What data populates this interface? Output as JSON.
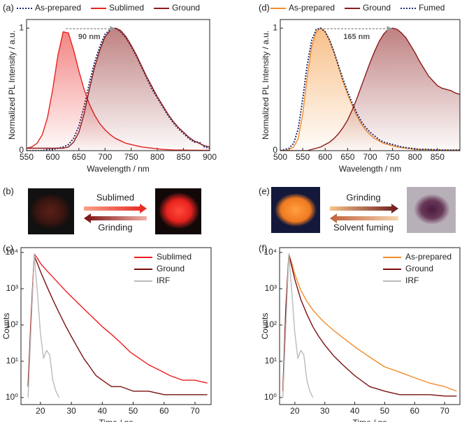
{
  "chart_data": [
    {
      "type": "line",
      "panel_label": "(a)",
      "xlabel": "Wavelength / nm",
      "ylabel": "Normalized PL Intensity / a.u.",
      "xlim": [
        550,
        900
      ],
      "ylim": [
        0,
        1.07
      ],
      "xticks": [
        550,
        600,
        650,
        700,
        750,
        800,
        850,
        900
      ],
      "yticks": [
        0,
        1
      ],
      "legend": "top",
      "annotation": "90 nm",
      "x": [
        550,
        560,
        570,
        580,
        590,
        600,
        610,
        620,
        630,
        640,
        650,
        660,
        670,
        680,
        690,
        700,
        710,
        720,
        730,
        740,
        750,
        760,
        770,
        780,
        790,
        800,
        810,
        820,
        830,
        840,
        850,
        860,
        870,
        880,
        890,
        900
      ],
      "series": [
        {
          "name": "As-prepared",
          "color": "#1f2a6b",
          "linestyle": "dotted",
          "values": [
            0,
            0,
            0,
            0,
            0.01,
            0.01,
            0.02,
            0.03,
            0.05,
            0.1,
            0.2,
            0.36,
            0.55,
            0.72,
            0.85,
            0.95,
            0.99,
            1.0,
            0.97,
            0.92,
            0.85,
            0.77,
            0.68,
            0.59,
            0.5,
            0.43,
            0.36,
            0.29,
            0.23,
            0.18,
            0.14,
            0.1,
            0.07,
            0.07,
            0.03,
            0.02
          ]
        },
        {
          "name": "Sublimed",
          "color": "#e8231f",
          "linestyle": "solid",
          "values": [
            0.02,
            0.03,
            0.06,
            0.13,
            0.27,
            0.5,
            0.78,
            0.97,
            0.96,
            0.82,
            0.65,
            0.5,
            0.38,
            0.29,
            0.22,
            0.17,
            0.13,
            0.1,
            0.08,
            0.06,
            0.05,
            0.04,
            0.03,
            0.025,
            0.02,
            0.015,
            0.01,
            0.008,
            0.006,
            0.005,
            0.005,
            0.004,
            0.004,
            0.003,
            0.003,
            0.003
          ]
        },
        {
          "name": "Ground",
          "color": "#8b1a1a",
          "linestyle": "solid",
          "values": [
            0.02,
            0.02,
            0.02,
            0.02,
            0.02,
            0.02,
            0.02,
            0.02,
            0.03,
            0.07,
            0.15,
            0.3,
            0.5,
            0.68,
            0.82,
            0.93,
            0.98,
            1.0,
            0.98,
            0.93,
            0.86,
            0.78,
            0.69,
            0.6,
            0.52,
            0.44,
            0.37,
            0.3,
            0.24,
            0.19,
            0.15,
            0.11,
            0.08,
            0.06,
            0.04,
            0.03
          ]
        }
      ]
    },
    {
      "type": "line",
      "panel_label": "(d)",
      "xlabel": "Wavelength / nm",
      "ylabel": "Normalized PL Intensity / a.u.",
      "xlim": [
        500,
        900
      ],
      "ylim": [
        0,
        1.07
      ],
      "xticks": [
        500,
        550,
        600,
        650,
        700,
        750,
        800,
        850
      ],
      "yticks": [
        0,
        1
      ],
      "legend": "top",
      "annotation": "165 nm",
      "x": [
        500,
        510,
        520,
        530,
        540,
        550,
        560,
        570,
        580,
        590,
        600,
        610,
        620,
        630,
        640,
        650,
        660,
        670,
        680,
        690,
        700,
        710,
        720,
        730,
        740,
        750,
        760,
        770,
        780,
        790,
        800,
        810,
        820,
        830,
        840,
        850,
        860,
        870,
        880,
        890,
        900
      ],
      "series": [
        {
          "name": "As-prepared",
          "color": "#f28c28",
          "linestyle": "solid",
          "values": [
            0,
            0,
            0.01,
            0.03,
            0.1,
            0.3,
            0.6,
            0.85,
            0.97,
            1.0,
            0.97,
            0.9,
            0.8,
            0.68,
            0.56,
            0.46,
            0.37,
            0.29,
            0.22,
            0.17,
            0.13,
            0.1,
            0.08,
            0.06,
            0.05,
            0.04,
            0.03,
            0.025,
            0.02,
            0.015,
            0.01,
            0.01,
            0.01,
            0.008,
            0.006,
            0.005,
            0.005,
            0.005,
            0.005,
            0.005,
            0.005
          ]
        },
        {
          "name": "Ground",
          "color": "#8b1a1a",
          "linestyle": "solid",
          "values": [
            0,
            0,
            0,
            0,
            0,
            0,
            0,
            0.01,
            0.02,
            0.03,
            0.05,
            0.07,
            0.1,
            0.14,
            0.19,
            0.25,
            0.33,
            0.42,
            0.52,
            0.62,
            0.72,
            0.81,
            0.89,
            0.95,
            0.99,
            1.0,
            0.99,
            0.96,
            0.92,
            0.86,
            0.8,
            0.73,
            0.67,
            0.61,
            0.57,
            0.53,
            0.51,
            0.5,
            0.49,
            0.47,
            0.46
          ]
        },
        {
          "name": "Fumed",
          "color": "#1f2a6b",
          "linestyle": "dotted",
          "values": [
            0,
            0.01,
            0.02,
            0.06,
            0.18,
            0.42,
            0.7,
            0.9,
            0.99,
            1.0,
            0.97,
            0.9,
            0.8,
            0.69,
            0.58,
            0.48,
            0.39,
            0.31,
            0.24,
            0.19,
            0.15,
            0.12,
            0.09,
            0.07,
            0.06,
            0.05,
            0.04,
            0.03,
            0.025,
            0.02,
            0.015,
            0.01,
            0.01,
            0.01,
            0.008,
            0.006,
            0.005,
            0.005,
            0.004,
            0.004,
            0.004
          ]
        }
      ]
    },
    {
      "type": "line",
      "panel_label": "(c)",
      "xlabel": "Time / ns",
      "ylabel": "Counts",
      "log_y": true,
      "xlim": [
        13.7,
        75.2
      ],
      "ylim": [
        0.64,
        13600
      ],
      "xticks": [
        20,
        30,
        40,
        50,
        60,
        70
      ],
      "yticks": [
        {
          "value": 1,
          "label": "10⁰"
        },
        {
          "value": 10,
          "label": "10¹"
        },
        {
          "value": 100,
          "label": "10²"
        },
        {
          "value": 1000,
          "label": "10³"
        },
        {
          "value": 10000,
          "label": "10⁴"
        }
      ],
      "legend": "upper right",
      "series": [
        {
          "name": "Sublimed",
          "color": "#f01c1c",
          "linestyle": "solid",
          "x": [
            16,
            17,
            18,
            19,
            20,
            22,
            25,
            28,
            31,
            34,
            37,
            40,
            43,
            46,
            49,
            52,
            55,
            58,
            62,
            66,
            70,
            74
          ],
          "values": [
            2,
            200,
            9000,
            7000,
            5000,
            3200,
            1700,
            900,
            500,
            280,
            160,
            90,
            55,
            32,
            18,
            12,
            8,
            6,
            4,
            3,
            3,
            2.5
          ]
        },
        {
          "name": "Ground",
          "color": "#7a0f0f",
          "linestyle": "solid",
          "x": [
            16,
            17,
            18,
            19,
            20,
            22,
            24,
            26,
            28,
            30,
            32,
            34,
            36,
            38,
            40,
            43,
            46,
            50,
            55,
            60,
            65,
            70,
            74
          ],
          "values": [
            2,
            150,
            8000,
            5000,
            3000,
            1200,
            500,
            220,
            100,
            48,
            24,
            12,
            7,
            4,
            3,
            2,
            2,
            1.5,
            1.5,
            1.2,
            1.2,
            1.2,
            1.2
          ]
        },
        {
          "name": "IRF",
          "color": "#bbbbbb",
          "linestyle": "solid",
          "x": [
            16,
            17,
            18,
            19,
            20,
            21,
            22,
            23,
            24,
            25,
            26
          ],
          "values": [
            1,
            100,
            9000,
            800,
            60,
            12,
            20,
            15,
            3,
            1.5,
            1
          ]
        }
      ]
    },
    {
      "type": "line",
      "panel_label": "(f)",
      "xlabel": "Time / ns",
      "ylabel": "Counts",
      "log_y": true,
      "xlim": [
        14.9,
        75.1
      ],
      "ylim": [
        0.64,
        13600
      ],
      "xticks": [
        20,
        30,
        40,
        50,
        60,
        70
      ],
      "yticks": [
        {
          "value": 1,
          "label": "10⁰"
        },
        {
          "value": 10,
          "label": "10¹"
        },
        {
          "value": 100,
          "label": "10²"
        },
        {
          "value": 1000,
          "label": "10³"
        },
        {
          "value": 10000,
          "label": "10⁴"
        }
      ],
      "legend": "upper right",
      "series": [
        {
          "name": "As-prepared",
          "color": "#f28c28",
          "linestyle": "solid",
          "x": [
            16,
            17,
            18,
            19,
            20,
            22,
            24,
            26,
            28,
            30,
            33,
            36,
            40,
            45,
            50,
            55,
            60,
            65,
            70,
            74
          ],
          "values": [
            1.5,
            300,
            9000,
            5000,
            2500,
            900,
            450,
            260,
            170,
            115,
            70,
            45,
            25,
            13,
            7,
            5,
            3.5,
            2.5,
            2,
            1.5
          ]
        },
        {
          "name": "Ground",
          "color": "#7a0f0f",
          "linestyle": "solid",
          "x": [
            16,
            17,
            18,
            19,
            20,
            22,
            24,
            26,
            28,
            30,
            33,
            36,
            40,
            45,
            50,
            55,
            60,
            65,
            70,
            74
          ],
          "values": [
            1.5,
            300,
            9000,
            4000,
            1800,
            500,
            200,
            90,
            48,
            28,
            14,
            8,
            4,
            2,
            1.5,
            1.2,
            1.2,
            1.2,
            1.1,
            1.1
          ]
        },
        {
          "name": "IRF",
          "color": "#bbbbbb",
          "linestyle": "solid",
          "x": [
            16,
            17,
            18,
            19,
            20,
            21,
            22,
            23,
            24,
            25,
            26
          ],
          "values": [
            1,
            100,
            9000,
            800,
            60,
            12,
            20,
            15,
            3,
            1.5,
            1
          ]
        }
      ]
    }
  ],
  "schemes": [
    {
      "label": "(b)",
      "forward": "Sublimed",
      "backward": "Grinding"
    },
    {
      "label": "(e)",
      "forward": "Grinding",
      "backward": "Solvent fuming"
    }
  ]
}
